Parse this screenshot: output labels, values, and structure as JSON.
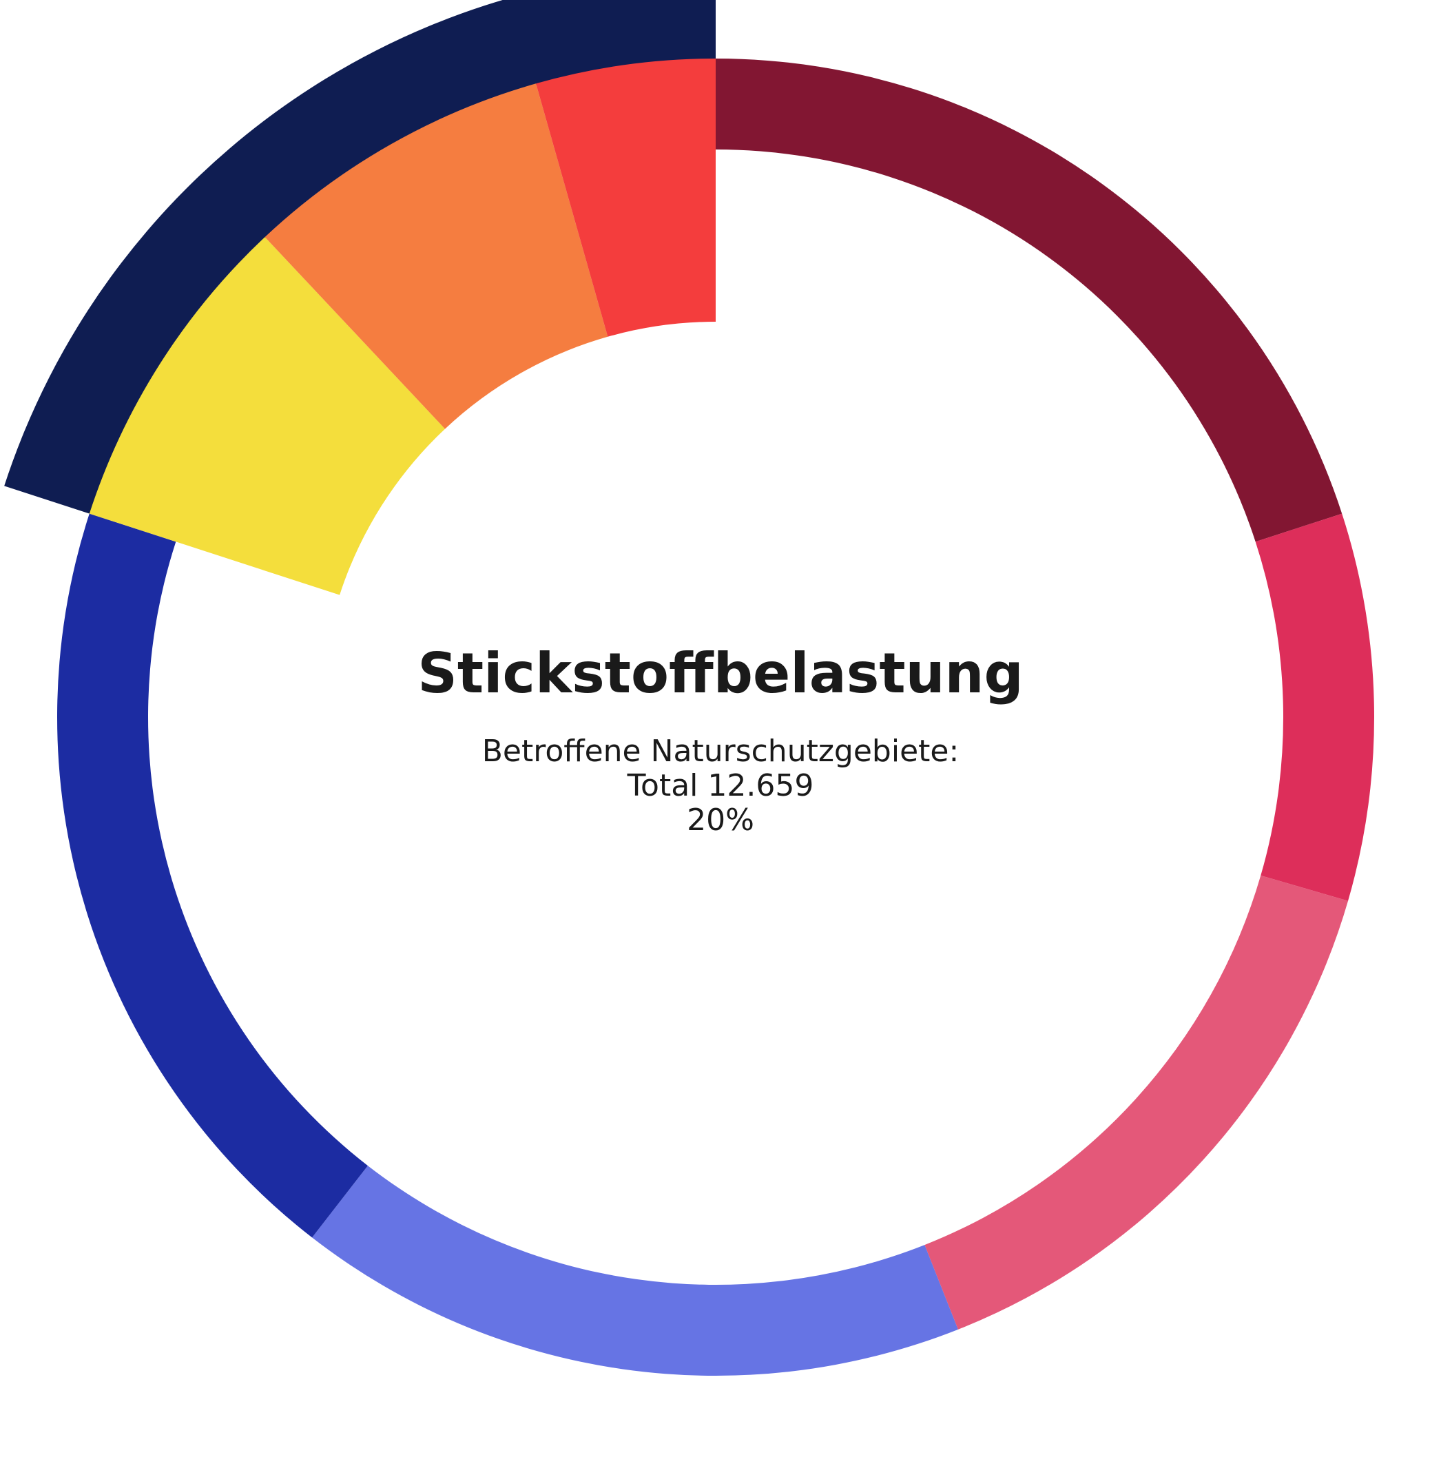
{
  "chart_data": {
    "type": "pie",
    "title": "Stickstoffbelastung",
    "subtitle": "Betroffene Naturschutzgebiete:",
    "total_label": "Total 12.659",
    "percent_label": "20%",
    "legend": "none",
    "start_angle_deg": 0,
    "direction": "clockwise",
    "slices": [
      {
        "value": 20.0,
        "color": "#821632",
        "highlighted": false
      },
      {
        "value": 9.5,
        "color": "#dd2e5a",
        "highlighted": false
      },
      {
        "value": 14.5,
        "color": "#e45879",
        "highlighted": false
      },
      {
        "value": 16.5,
        "color": "#6674e4",
        "highlighted": false
      },
      {
        "value": 19.5,
        "color": "#1c2ca2",
        "highlighted": false
      },
      {
        "value": 8.0,
        "color": "#f4de3c",
        "highlighted": true,
        "group": "highlight"
      },
      {
        "value": 7.6,
        "color": "#f57d40",
        "highlighted": true,
        "group": "highlight"
      },
      {
        "value": 4.4,
        "color": "#f43d3d",
        "highlighted": true,
        "group": "highlight"
      }
    ],
    "highlight_group": {
      "name": "",
      "share": 20,
      "color": "#0f1d52"
    }
  }
}
